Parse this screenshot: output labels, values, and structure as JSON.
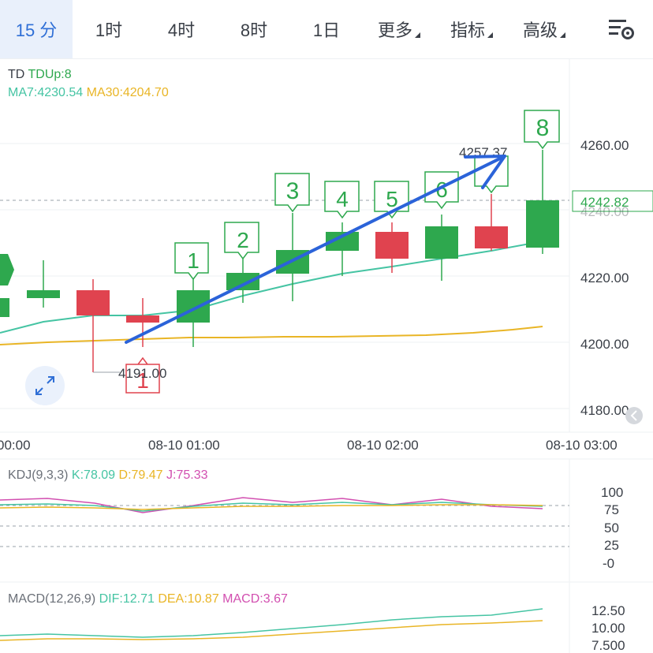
{
  "tabs": [
    {
      "label": "15 分",
      "active": true
    },
    {
      "label": "1时"
    },
    {
      "label": "4时"
    },
    {
      "label": "8时"
    },
    {
      "label": "1日"
    },
    {
      "label": "更多",
      "dropdown": true
    },
    {
      "label": "指标",
      "dropdown": true
    },
    {
      "label": "高级",
      "dropdown": true
    }
  ],
  "settings_icon": "chart-settings-icon",
  "main": {
    "td_label": "TD",
    "td_value": "TDUp:8",
    "ma7": "MA7:4230.54",
    "ma30": "MA30:4204.70",
    "price_axis": [
      "4260.00",
      "4240.00",
      "4220.00",
      "4200.00",
      "4180.00"
    ],
    "current_price": "4242.82",
    "high_label": "4257.37",
    "low_label": "4191.00",
    "time_axis": [
      "00:00",
      "08-10 01:00",
      "08-10 02:00",
      "08-10 03:00"
    ],
    "green_counts": [
      "1",
      "2",
      "3",
      "4",
      "5",
      "6",
      "8"
    ],
    "red_count": "1",
    "expand_icon": "expand-icon"
  },
  "kdj": {
    "label": "KDJ(9,3,3)",
    "k": "K:78.09",
    "d": "D:79.47",
    "j": "J:75.33",
    "axis": [
      "100",
      "75",
      "50",
      "25",
      "-0"
    ]
  },
  "macd": {
    "label": "MACD(12,26,9)",
    "dif": "DIF:12.71",
    "dea": "DEA:10.87",
    "macd": "MACD:3.67",
    "axis": [
      "12.50",
      "10.00",
      "7.500"
    ]
  },
  "colors": {
    "up": "#2ea84e",
    "down": "#e0434f",
    "ma7": "#45c4a3",
    "ma30": "#e9b526",
    "accent": "#2f6fd6",
    "arrow": "#2b63d9"
  }
}
